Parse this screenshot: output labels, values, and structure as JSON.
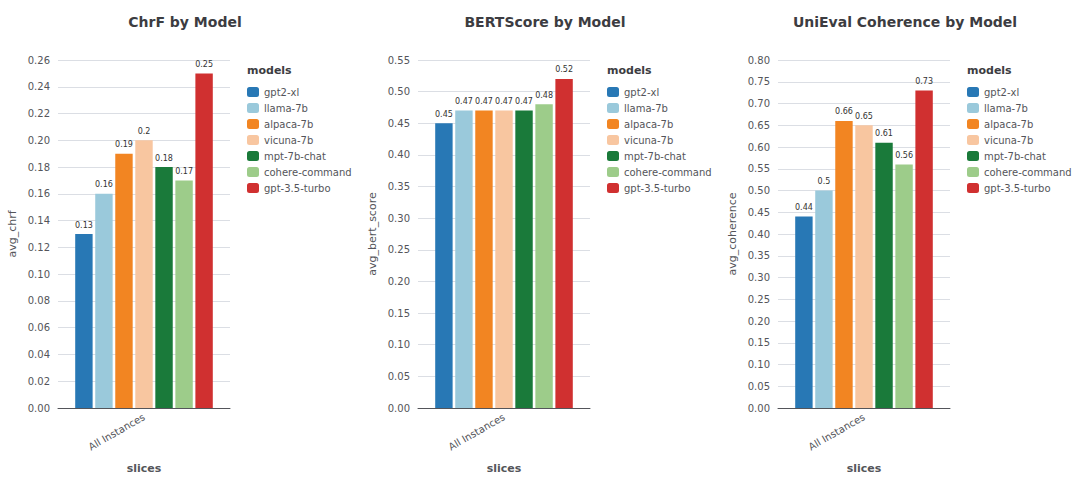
{
  "chart_data": [
    {
      "type": "bar",
      "title": "ChrF by Model",
      "xlabel": "slices",
      "ylabel": "avg_chrf",
      "categories": [
        "All Instances"
      ],
      "series": [
        {
          "name": "gpt2-xl",
          "color": "#2878b5",
          "values": [
            0.13
          ]
        },
        {
          "name": "llama-7b",
          "color": "#9ac9db",
          "values": [
            0.16
          ]
        },
        {
          "name": "alpaca-7b",
          "color": "#f28522",
          "values": [
            0.19
          ]
        },
        {
          "name": "vicuna-7b",
          "color": "#f8c6a0",
          "values": [
            0.2
          ]
        },
        {
          "name": "mpt-7b-chat",
          "color": "#1a7a3a",
          "values": [
            0.18
          ]
        },
        {
          "name": "cohere-command",
          "color": "#9dcc8a",
          "values": [
            0.17
          ]
        },
        {
          "name": "gpt-3.5-turbo",
          "color": "#d03030",
          "values": [
            0.25
          ]
        }
      ],
      "ylim": [
        0.0,
        0.26
      ],
      "yticks": [
        {
          "value": 0.0,
          "label": "0.00"
        },
        {
          "value": 0.02,
          "label": "0.02"
        },
        {
          "value": 0.04,
          "label": "0.04"
        },
        {
          "value": 0.06,
          "label": "0.06"
        },
        {
          "value": 0.08,
          "label": "0.08"
        },
        {
          "value": 0.1,
          "label": "0.10"
        },
        {
          "value": 0.12,
          "label": "0.12"
        },
        {
          "value": 0.14,
          "label": "0.14"
        },
        {
          "value": 0.16,
          "label": "0.16"
        },
        {
          "value": 0.18,
          "label": "0.18"
        },
        {
          "value": 0.2,
          "label": "0.20"
        },
        {
          "value": 0.22,
          "label": "0.22"
        },
        {
          "value": 0.24,
          "label": "0.24"
        },
        {
          "value": 0.26,
          "label": "0.26"
        }
      ],
      "grid": true,
      "legend": "upper right",
      "legend_title": "models",
      "data_labels": true
    },
    {
      "type": "bar",
      "title": "BERTScore by Model",
      "xlabel": "slices",
      "ylabel": "avg_bert_score",
      "categories": [
        "All Instances"
      ],
      "series": [
        {
          "name": "gpt2-xl",
          "color": "#2878b5",
          "values": [
            0.45
          ]
        },
        {
          "name": "llama-7b",
          "color": "#9ac9db",
          "values": [
            0.47
          ]
        },
        {
          "name": "alpaca-7b",
          "color": "#f28522",
          "values": [
            0.47
          ]
        },
        {
          "name": "vicuna-7b",
          "color": "#f8c6a0",
          "values": [
            0.47
          ]
        },
        {
          "name": "mpt-7b-chat",
          "color": "#1a7a3a",
          "values": [
            0.47
          ]
        },
        {
          "name": "cohere-command",
          "color": "#9dcc8a",
          "values": [
            0.48
          ]
        },
        {
          "name": "gpt-3.5-turbo",
          "color": "#d03030",
          "values": [
            0.52
          ]
        }
      ],
      "ylim": [
        0.0,
        0.55
      ],
      "yticks": [
        {
          "value": 0.0,
          "label": "0.00"
        },
        {
          "value": 0.05,
          "label": "0.05"
        },
        {
          "value": 0.1,
          "label": "0.10"
        },
        {
          "value": 0.15,
          "label": "0.15"
        },
        {
          "value": 0.2,
          "label": "0.20"
        },
        {
          "value": 0.25,
          "label": "0.25"
        },
        {
          "value": 0.3,
          "label": "0.30"
        },
        {
          "value": 0.35,
          "label": "0.35"
        },
        {
          "value": 0.4,
          "label": "0.40"
        },
        {
          "value": 0.45,
          "label": "0.45"
        },
        {
          "value": 0.5,
          "label": "0.50"
        },
        {
          "value": 0.55,
          "label": "0.55"
        }
      ],
      "grid": true,
      "legend": "upper right",
      "legend_title": "models",
      "data_labels": true
    },
    {
      "type": "bar",
      "title": "UniEval Coherence by Model",
      "xlabel": "slices",
      "ylabel": "avg_coherence",
      "categories": [
        "All Instances"
      ],
      "series": [
        {
          "name": "gpt2-xl",
          "color": "#2878b5",
          "values": [
            0.44
          ]
        },
        {
          "name": "llama-7b",
          "color": "#9ac9db",
          "values": [
            0.5
          ]
        },
        {
          "name": "alpaca-7b",
          "color": "#f28522",
          "values": [
            0.66
          ]
        },
        {
          "name": "vicuna-7b",
          "color": "#f8c6a0",
          "values": [
            0.65
          ]
        },
        {
          "name": "mpt-7b-chat",
          "color": "#1a7a3a",
          "values": [
            0.61
          ]
        },
        {
          "name": "cohere-command",
          "color": "#9dcc8a",
          "values": [
            0.56
          ]
        },
        {
          "name": "gpt-3.5-turbo",
          "color": "#d03030",
          "values": [
            0.73
          ]
        }
      ],
      "ylim": [
        0.0,
        0.8
      ],
      "yticks": [
        {
          "value": 0.0,
          "label": "0.00"
        },
        {
          "value": 0.05,
          "label": "0.05"
        },
        {
          "value": 0.1,
          "label": "0.10"
        },
        {
          "value": 0.15,
          "label": "0.15"
        },
        {
          "value": 0.2,
          "label": "0.20"
        },
        {
          "value": 0.25,
          "label": "0.25"
        },
        {
          "value": 0.3,
          "label": "0.30"
        },
        {
          "value": 0.35,
          "label": "0.35"
        },
        {
          "value": 0.4,
          "label": "0.40"
        },
        {
          "value": 0.45,
          "label": "0.45"
        },
        {
          "value": 0.5,
          "label": "0.50"
        },
        {
          "value": 0.55,
          "label": "0.55"
        },
        {
          "value": 0.6,
          "label": "0.60"
        },
        {
          "value": 0.65,
          "label": "0.65"
        },
        {
          "value": 0.7,
          "label": "0.70"
        },
        {
          "value": 0.75,
          "label": "0.75"
        },
        {
          "value": 0.8,
          "label": "0.80"
        }
      ],
      "grid": true,
      "legend": "upper right",
      "legend_title": "models",
      "data_labels": true
    }
  ]
}
